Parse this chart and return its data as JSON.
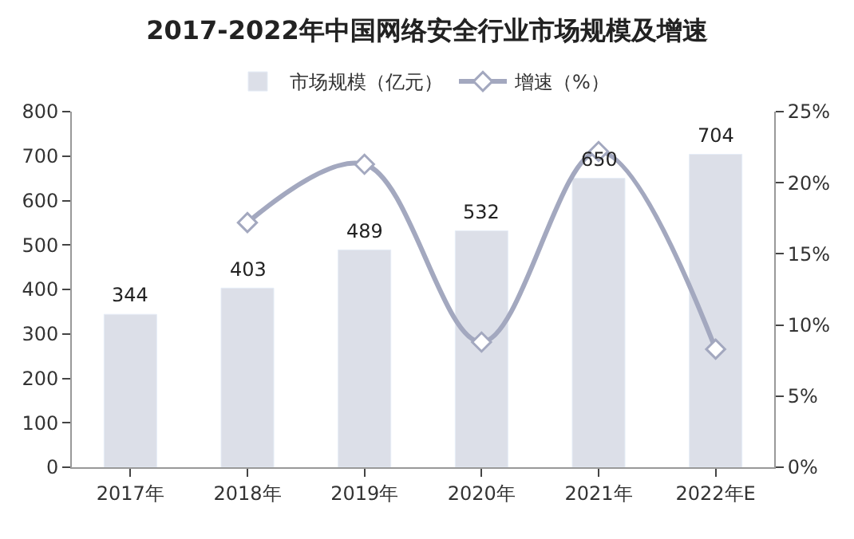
{
  "chart_data": {
    "type": "bar",
    "title": "2017-2022年中国网络安全行业市场规模及增速",
    "categories": [
      "2017年",
      "2018年",
      "2019年",
      "2020年",
      "2021年",
      "2022年E"
    ],
    "series": [
      {
        "name": "市场规模（亿元）",
        "color": "#dcdfe8",
        "values": [
          344,
          403,
          489,
          532,
          650,
          704
        ],
        "value_labels": [
          "344",
          "403",
          "489",
          "532",
          "650",
          "704"
        ]
      },
      {
        "name": "增速（%）",
        "type": "line",
        "axis": "y2",
        "color": "#a3a8bf",
        "marker": "diamond",
        "values": [
          null,
          17.2,
          21.3,
          8.8,
          22.2,
          8.3
        ]
      }
    ],
    "ylim": [
      0,
      800
    ],
    "yticks": [
      0,
      100,
      200,
      300,
      400,
      500,
      600,
      700,
      800
    ],
    "y2lim": [
      0,
      25
    ],
    "y2ticks": [
      {
        "value": 0,
        "label": "0%"
      },
      {
        "value": 5,
        "label": "5%"
      },
      {
        "value": 10,
        "label": "10%"
      },
      {
        "value": 15,
        "label": "15%"
      },
      {
        "value": 20,
        "label": "20%"
      },
      {
        "value": 25,
        "label": "25%"
      }
    ],
    "legend": "top"
  }
}
